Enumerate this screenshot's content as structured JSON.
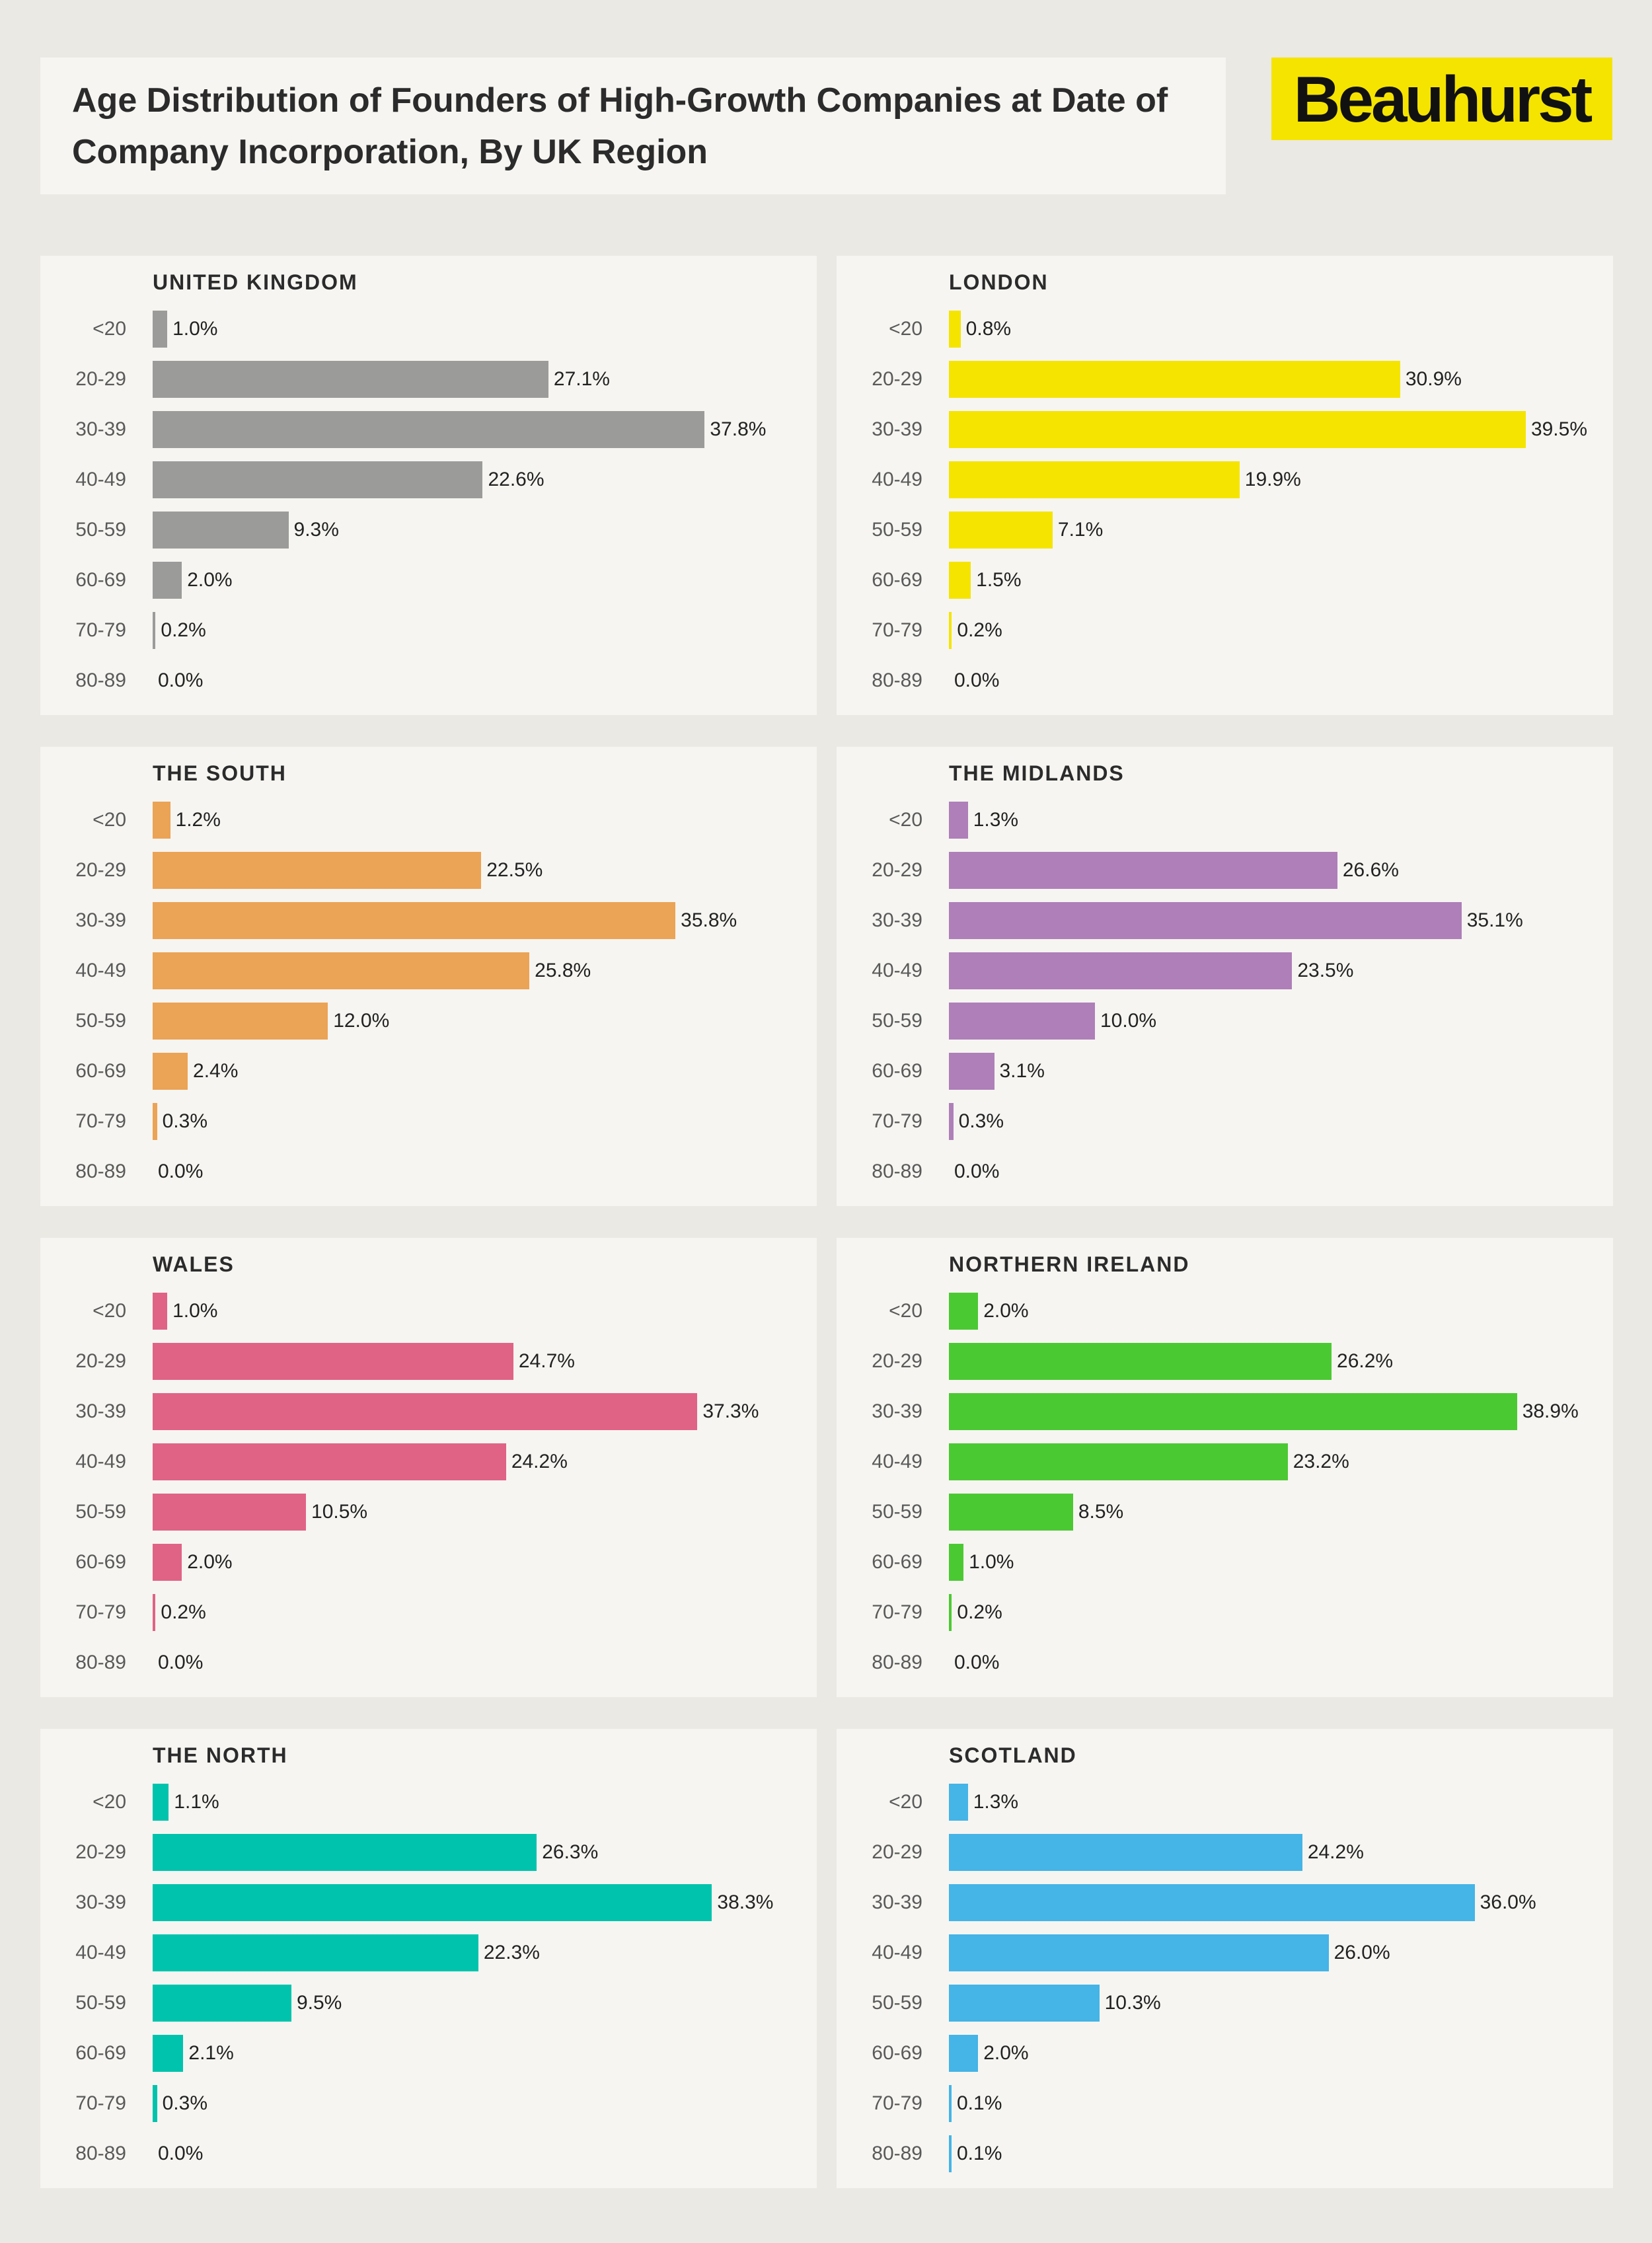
{
  "header": {
    "title_line1": "Age Distribution of Founders of High-Growth Companies at Date of",
    "title_line2": "Company Incorporation, By UK Region",
    "brand": "Beauhurst"
  },
  "colors": {
    "background": "#ebe9e4",
    "panel": "#f6f5f1",
    "brand_yellow": "#f5e400"
  },
  "chart_data": [
    {
      "type": "bar",
      "orientation": "horizontal",
      "title": "UNITED KINGDOM",
      "color": "#9b9b9a",
      "categories": [
        "<20",
        "20-29",
        "30-39",
        "40-49",
        "50-59",
        "60-69",
        "70-79",
        "80-89"
      ],
      "values": [
        1.0,
        27.1,
        37.8,
        22.6,
        9.3,
        2.0,
        0.2,
        0.0
      ],
      "labels": [
        "1.0%",
        "27.1%",
        "37.8%",
        "22.6%",
        "9.3%",
        "2.0%",
        "0.2%",
        "0.0%"
      ],
      "xlim": [
        0,
        40
      ]
    },
    {
      "type": "bar",
      "orientation": "horizontal",
      "title": "LONDON",
      "color": "#f5e400",
      "categories": [
        "<20",
        "20-29",
        "30-39",
        "40-49",
        "50-59",
        "60-69",
        "70-79",
        "80-89"
      ],
      "values": [
        0.8,
        30.9,
        39.5,
        19.9,
        7.1,
        1.5,
        0.2,
        0.0
      ],
      "labels": [
        "0.8%",
        "30.9%",
        "39.5%",
        "19.9%",
        "7.1%",
        "1.5%",
        "0.2%",
        "0.0%"
      ],
      "xlim": [
        0,
        40
      ]
    },
    {
      "type": "bar",
      "orientation": "horizontal",
      "title": "THE SOUTH",
      "color": "#eba356",
      "categories": [
        "<20",
        "20-29",
        "30-39",
        "40-49",
        "50-59",
        "60-69",
        "70-79",
        "80-89"
      ],
      "values": [
        1.2,
        22.5,
        35.8,
        25.8,
        12.0,
        2.4,
        0.3,
        0.0
      ],
      "labels": [
        "1.2%",
        "22.5%",
        "35.8%",
        "25.8%",
        "12.0%",
        "2.4%",
        "0.3%",
        "0.0%"
      ],
      "xlim": [
        0,
        40
      ]
    },
    {
      "type": "bar",
      "orientation": "horizontal",
      "title": "THE MIDLANDS",
      "color": "#ae7fb8",
      "categories": [
        "<20",
        "20-29",
        "30-39",
        "40-49",
        "50-59",
        "60-69",
        "70-79",
        "80-89"
      ],
      "values": [
        1.3,
        26.6,
        35.1,
        23.5,
        10.0,
        3.1,
        0.3,
        0.0
      ],
      "labels": [
        "1.3%",
        "26.6%",
        "35.1%",
        "23.5%",
        "10.0%",
        "3.1%",
        "0.3%",
        "0.0%"
      ],
      "xlim": [
        0,
        40
      ]
    },
    {
      "type": "bar",
      "orientation": "horizontal",
      "title": "WALES",
      "color": "#e06386",
      "categories": [
        "<20",
        "20-29",
        "30-39",
        "40-49",
        "50-59",
        "60-69",
        "70-79",
        "80-89"
      ],
      "values": [
        1.0,
        24.7,
        37.3,
        24.2,
        10.5,
        2.0,
        0.2,
        0.0
      ],
      "labels": [
        "1.0%",
        "24.7%",
        "37.3%",
        "24.2%",
        "10.5%",
        "2.0%",
        "0.2%",
        "0.0%"
      ],
      "xlim": [
        0,
        40
      ]
    },
    {
      "type": "bar",
      "orientation": "horizontal",
      "title": "NORTHERN IRELAND",
      "color": "#4bc932",
      "categories": [
        "<20",
        "20-29",
        "30-39",
        "40-49",
        "50-59",
        "60-69",
        "70-79",
        "80-89"
      ],
      "values": [
        2.0,
        26.2,
        38.9,
        23.2,
        8.5,
        1.0,
        0.2,
        0.0
      ],
      "labels": [
        "2.0%",
        "26.2%",
        "38.9%",
        "23.2%",
        "8.5%",
        "1.0%",
        "0.2%",
        "0.0%"
      ],
      "xlim": [
        0,
        40
      ]
    },
    {
      "type": "bar",
      "orientation": "horizontal",
      "title": "THE NORTH",
      "color": "#00c3ad",
      "categories": [
        "<20",
        "20-29",
        "30-39",
        "40-49",
        "50-59",
        "60-69",
        "70-79",
        "80-89"
      ],
      "values": [
        1.1,
        26.3,
        38.3,
        22.3,
        9.5,
        2.1,
        0.3,
        0.0
      ],
      "labels": [
        "1.1%",
        "26.3%",
        "38.3%",
        "22.3%",
        "9.5%",
        "2.1%",
        "0.3%",
        "0.0%"
      ],
      "xlim": [
        0,
        40
      ]
    },
    {
      "type": "bar",
      "orientation": "horizontal",
      "title": "SCOTLAND",
      "color": "#45b4e6",
      "categories": [
        "<20",
        "20-29",
        "30-39",
        "40-49",
        "50-59",
        "60-69",
        "70-79",
        "80-89"
      ],
      "values": [
        1.3,
        24.2,
        36.0,
        26.0,
        10.3,
        2.0,
        0.1,
        0.1
      ],
      "labels": [
        "1.3%",
        "24.2%",
        "36.0%",
        "26.0%",
        "10.3%",
        "2.0%",
        "0.1%",
        "0.1%"
      ],
      "xlim": [
        0,
        40
      ]
    }
  ]
}
